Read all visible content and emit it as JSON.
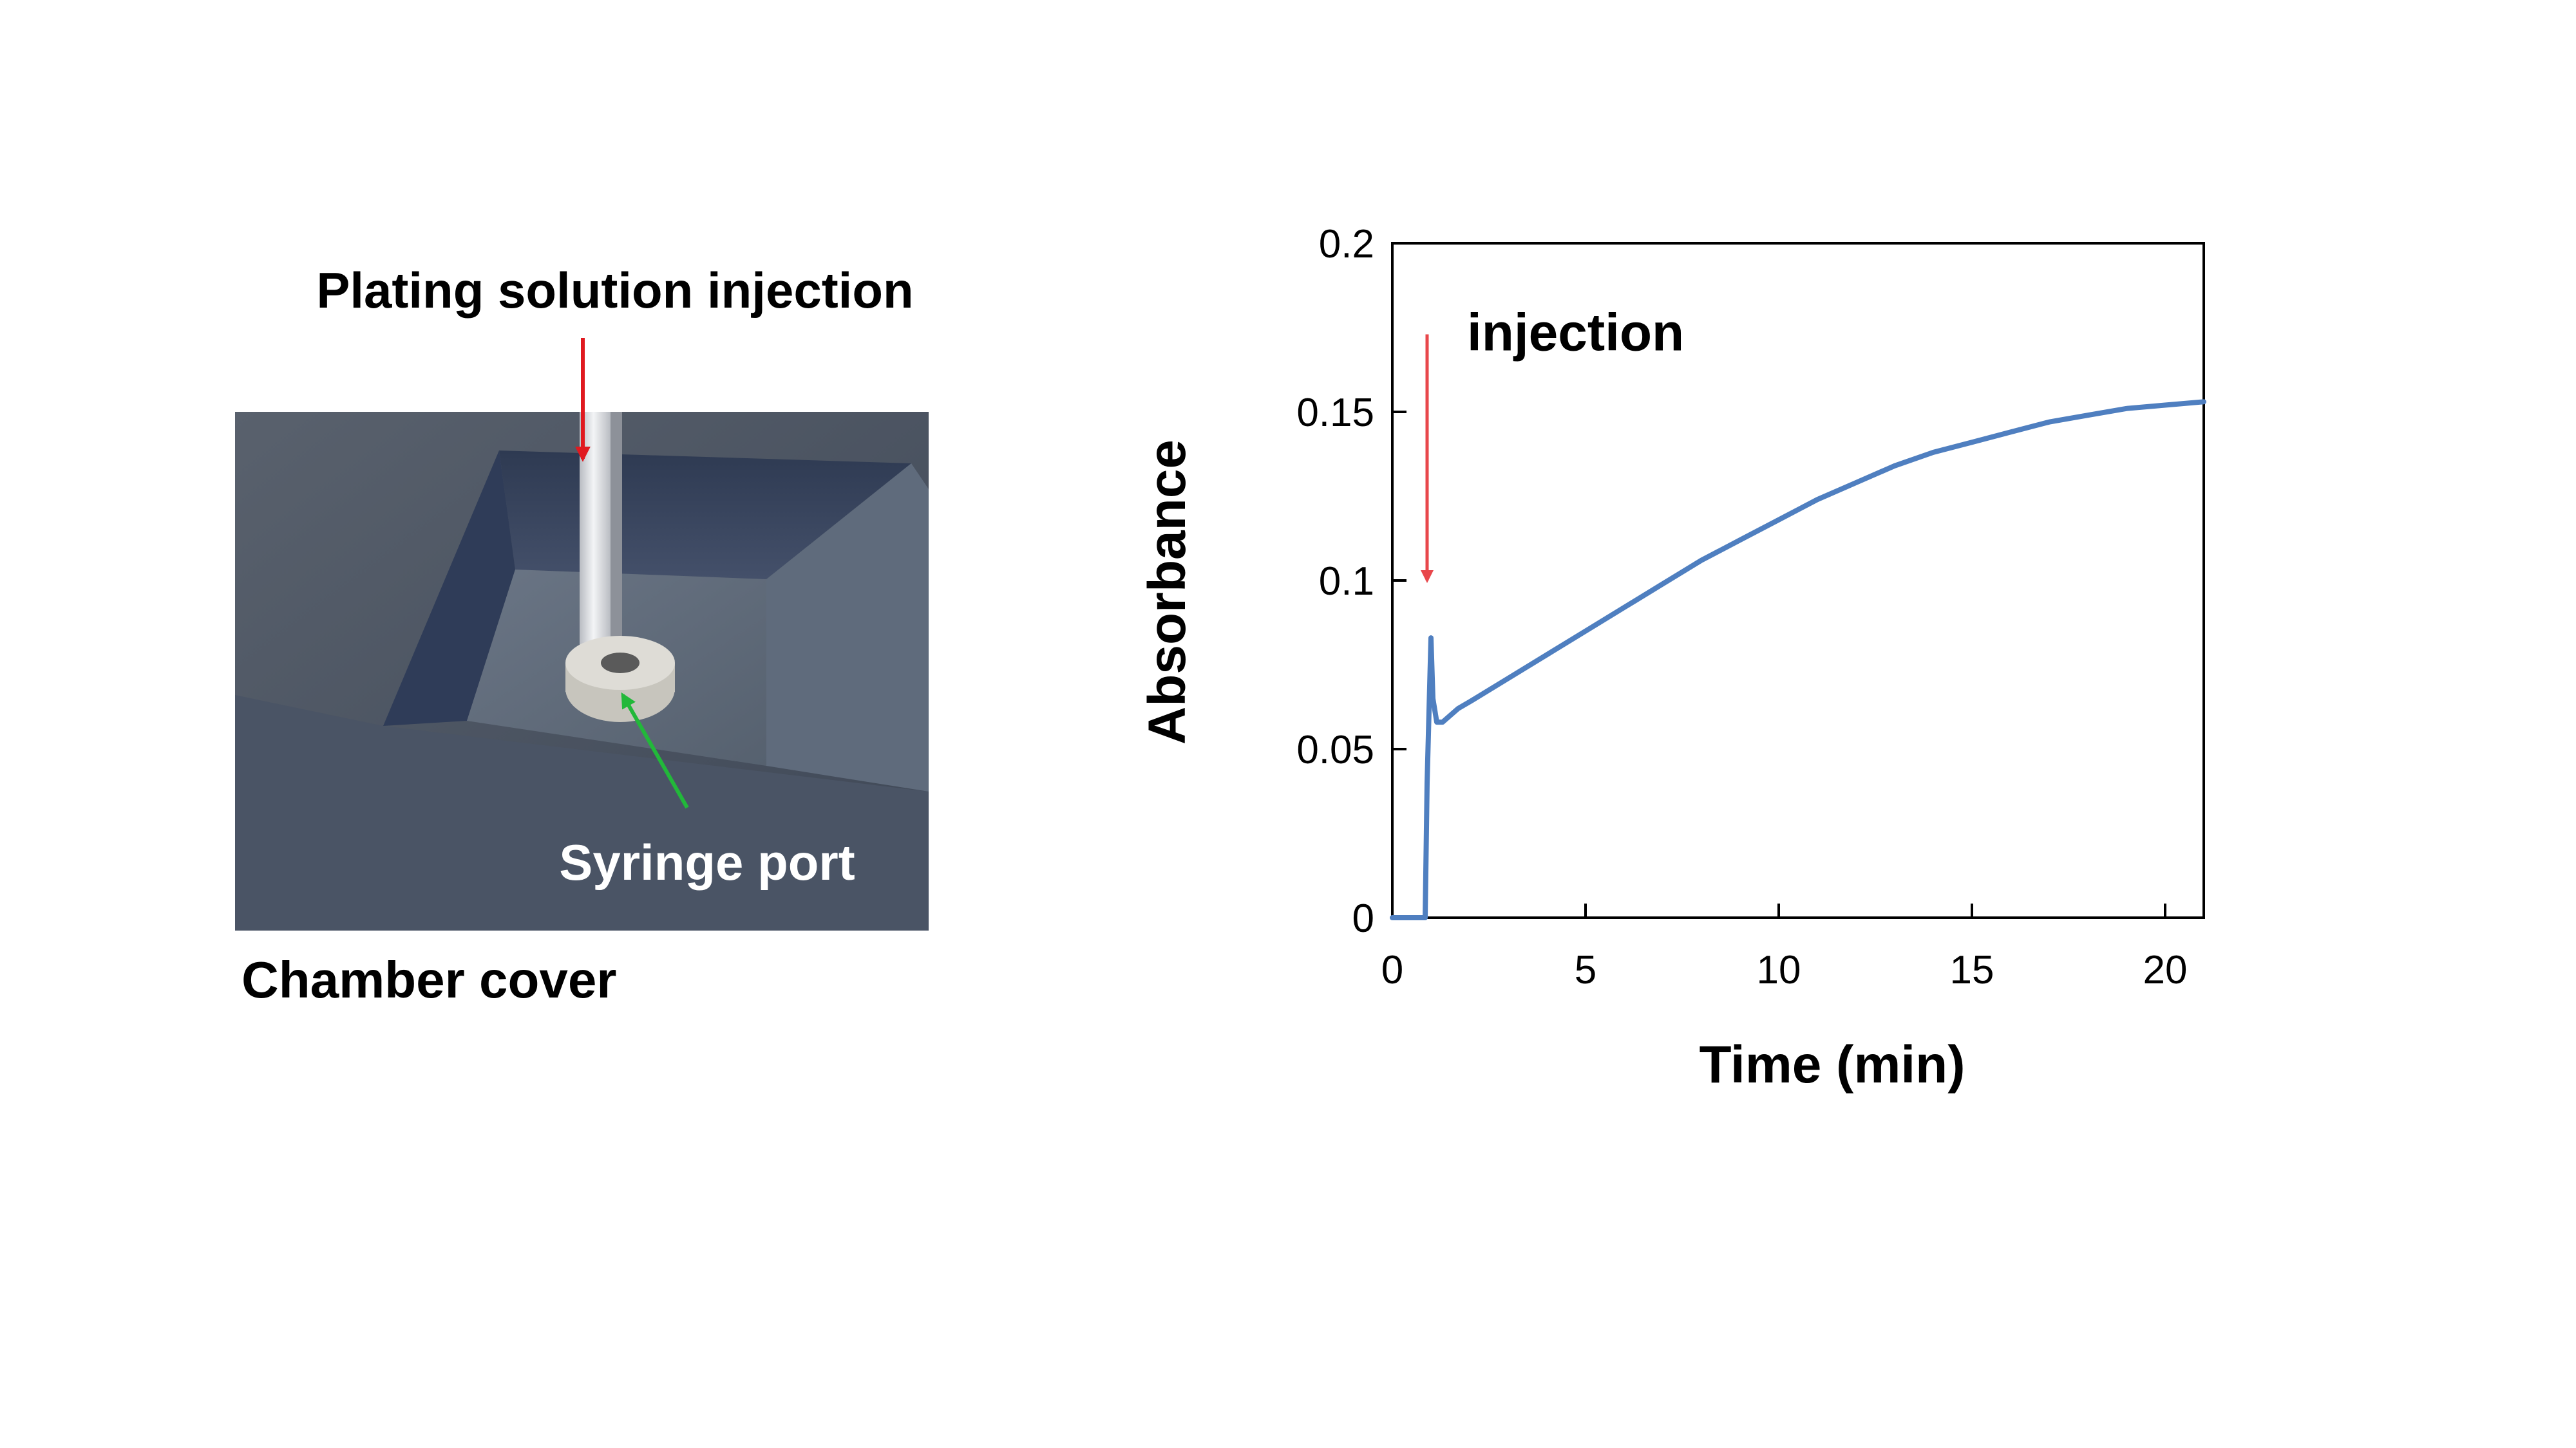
{
  "figure": {
    "photo_panel": {
      "top_label": "Plating solution injection",
      "port_label": "Syringe port",
      "caption": "Chamber cover",
      "colors": {
        "injection_arrow": "#e0191f",
        "port_arrow": "#22b83a",
        "cover": "#4d5766",
        "opening_floor": "#5e6a7a",
        "syringe": "#e6e7ea"
      }
    }
  },
  "chart_data": {
    "type": "line",
    "title": "",
    "xlabel": "Time (min)",
    "ylabel": "Absorbance",
    "xlim": [
      0,
      21
    ],
    "ylim": [
      0,
      0.2
    ],
    "xticks": [
      0,
      5,
      10,
      15,
      20
    ],
    "yticks": [
      0,
      0.05,
      0.1,
      0.15,
      0.2
    ],
    "ytick_labels": [
      "0",
      "0.05",
      "0.1",
      "0.15",
      "0.2"
    ],
    "grid": false,
    "legend": "none",
    "series": [
      {
        "color": "#4f7fc0",
        "x": [
          0,
          0.5,
          0.85,
          0.9,
          1.0,
          1.05,
          1.15,
          1.3,
          1.5,
          1.7,
          2,
          3,
          4,
          5,
          6,
          7,
          8,
          9,
          10,
          11,
          12,
          13,
          14,
          15,
          16,
          17,
          18,
          19,
          20,
          21
        ],
        "y": [
          0,
          0,
          0,
          0.04,
          0.083,
          0.065,
          0.058,
          0.058,
          0.06,
          0.062,
          0.064,
          0.071,
          0.078,
          0.085,
          0.092,
          0.099,
          0.106,
          0.112,
          0.118,
          0.124,
          0.129,
          0.134,
          0.138,
          0.141,
          0.144,
          0.147,
          0.149,
          0.151,
          0.152,
          0.153
        ]
      }
    ],
    "annotations": [
      {
        "text": "injection",
        "x": 0.9,
        "y_from": 0.173,
        "y_to": 0.1,
        "color": "#e8474b"
      }
    ]
  }
}
